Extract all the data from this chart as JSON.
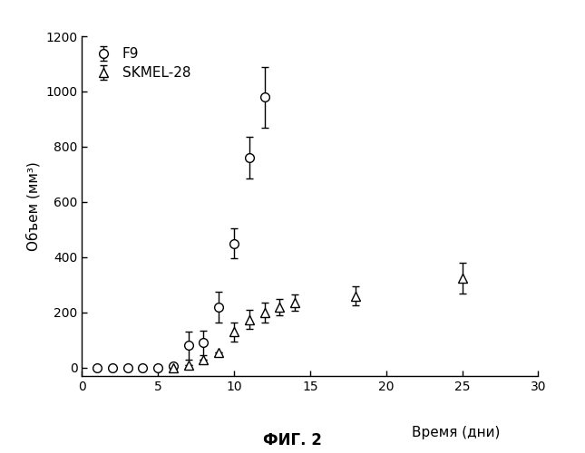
{
  "f9_x": [
    1,
    2,
    3,
    4,
    5,
    6,
    7,
    8,
    9,
    10,
    11,
    12
  ],
  "f9_y": [
    0,
    0,
    0,
    0,
    0,
    5,
    80,
    90,
    220,
    450,
    760,
    980
  ],
  "f9_yerr": [
    0,
    0,
    0,
    0,
    0,
    0,
    50,
    45,
    55,
    55,
    75,
    110
  ],
  "skmel_x": [
    6,
    7,
    8,
    9,
    10,
    11,
    12,
    13,
    14,
    18,
    25
  ],
  "skmel_y": [
    0,
    10,
    30,
    55,
    130,
    175,
    200,
    220,
    235,
    260,
    325
  ],
  "skmel_yerr": [
    0,
    0,
    0,
    0,
    35,
    35,
    35,
    30,
    30,
    35,
    55
  ],
  "xlabel": "Время (дни)",
  "ylabel": "Объем (мм³)",
  "title_below": "ФИГ. 2",
  "xlim": [
    0,
    30
  ],
  "ylim": [
    -30,
    1200
  ],
  "xticks": [
    0,
    5,
    10,
    15,
    20,
    25,
    30
  ],
  "yticks": [
    0,
    200,
    400,
    600,
    800,
    1000,
    1200
  ],
  "legend_f9": "F9",
  "legend_skmel": "SKMEL-28",
  "background_color": "#ffffff",
  "line_color": "#000000",
  "marker_f9": "o",
  "marker_skmel": "^",
  "marker_size": 7,
  "linewidth": 1.2,
  "capsize": 3,
  "elinewidth": 1.0,
  "xlabel_xpos": 0.78,
  "xlabel_ypos": 0.06
}
